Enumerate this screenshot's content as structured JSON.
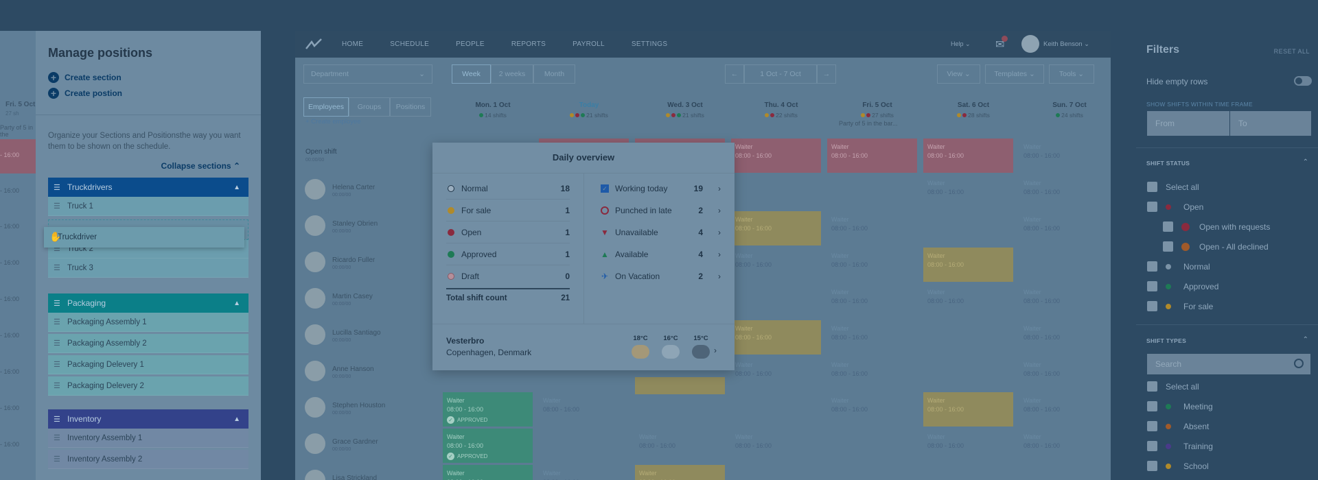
{
  "left_strip": {
    "day": "Fri. 5 Oct",
    "shifts": "27 sh",
    "note": "Party of 5 in the",
    "rows": [
      "- 16:00",
      "- 16:00",
      "- 16:00",
      "- 16:00",
      "- 16:00",
      "- 16:00",
      "- 16:00",
      "- 16:00",
      "- 16:00"
    ]
  },
  "manage": {
    "title": "Manage positions",
    "create_section": "Create section",
    "create_position": "Create postion",
    "description": "Organize your Sections and Positionsthe way you want them to be shown on the schedule.",
    "collapse": "Collapse sections",
    "dragging_item": "Truckdriver",
    "sections": [
      {
        "name": "Truckdrivers",
        "color": "#0b4c8c",
        "items": [
          "Truck 1",
          "Truck 2",
          "Truck 3"
        ]
      },
      {
        "name": "Packaging",
        "color": "#0b7f88",
        "items": [
          "Packaging Assembly 1",
          "Packaging Assembly 2",
          "Packaging Delevery 1",
          "Packaging Delevery 2"
        ]
      },
      {
        "name": "Inventory",
        "color": "#33428a",
        "items": [
          "Inventory Assembly 1",
          "Inventory Assembly 2"
        ]
      }
    ]
  },
  "nav": {
    "items": [
      "HOME",
      "SCHEDULE",
      "PEOPLE",
      "REPORTS",
      "PAYROLL",
      "SETTINGS"
    ],
    "help": "Help",
    "user": "Keith Benson"
  },
  "toolbar": {
    "department": "Department",
    "ranges": [
      "Week",
      "2 weeks",
      "Month"
    ],
    "date_range": "1 Oct - 7 Oct",
    "view": "View",
    "templates": "Templates",
    "tools": "Tools"
  },
  "subbar": {
    "tabs": [
      "Employees",
      "Groups",
      "Positions"
    ],
    "create_employee": "+ Create employee",
    "days": [
      {
        "label": "Mon. 1 Oct",
        "shifts": "14 shifts"
      },
      {
        "label": "Today",
        "shifts": "21 shifts"
      },
      {
        "label": "Wed. 3 Oct",
        "shifts": "21 shifts"
      },
      {
        "label": "Thu. 4 Oct",
        "shifts": "22 shifts"
      },
      {
        "label": "Fri. 5 Oct",
        "shifts": "27 shifts"
      },
      {
        "label": "Sat. 6 Oct",
        "shifts": "28 shifts"
      },
      {
        "label": "Sun. 7 Oct",
        "shifts": "24 shifts"
      }
    ],
    "party_note": "Party of 5 in the bar..."
  },
  "rows": {
    "open_shift": "Open shift",
    "open_shift_sub": "00:00/00",
    "employees": [
      {
        "name": "Helena Carter",
        "sub": "00:00/00"
      },
      {
        "name": "Stanley Obrien",
        "sub": "00:00/00"
      },
      {
        "name": "Ricardo Fuller",
        "sub": "00:00/00"
      },
      {
        "name": "Martin Casey",
        "sub": "00:00/00"
      },
      {
        "name": "Lucilla Santiago",
        "sub": "00:00/00"
      },
      {
        "name": "Anne Hanson",
        "sub": "00:00/00"
      },
      {
        "name": "Stephen Houston",
        "sub": "00:00/00"
      },
      {
        "name": "Grace Gardner",
        "sub": "00:00/00"
      },
      {
        "name": "Lisa Strickland",
        "sub": "00:00/00"
      }
    ]
  },
  "shift": {
    "role": "Waiter",
    "time": "08:00 - 16:00",
    "approved": "APPROVED"
  },
  "overview": {
    "title": "Daily overview",
    "left": [
      {
        "label": "Normal",
        "value": "18",
        "color": "#9aaebf"
      },
      {
        "label": "For sale",
        "value": "1",
        "color": "#b08a2a"
      },
      {
        "label": "Open",
        "value": "1",
        "color": "#8a2a3e"
      },
      {
        "label": "Approved",
        "value": "1",
        "color": "#1e7a55"
      },
      {
        "label": "Draft",
        "value": "0",
        "color": "#b58f9a"
      }
    ],
    "total_label": "Total shift count",
    "total_value": "21",
    "right": [
      {
        "label": "Working today",
        "value": "19",
        "icon": "calendar-check-icon"
      },
      {
        "label": "Punched in late",
        "value": "2",
        "icon": "clock-icon"
      },
      {
        "label": "Unavailable",
        "value": "4",
        "icon": "thumbs-down-icon"
      },
      {
        "label": "Available",
        "value": "4",
        "icon": "thumbs-up-icon"
      },
      {
        "label": "On Vacation",
        "value": "2",
        "icon": "airplane-icon"
      }
    ],
    "location_name": "Vesterbro",
    "location_city": "Copenhagen, Denmark",
    "weather": [
      "18°C",
      "16°C",
      "15°C"
    ]
  },
  "filters": {
    "title": "Filters",
    "reset": "RESET ALL",
    "hide_empty": "Hide empty rows",
    "timeframe_label": "SHOW SHIFTS WITHIN TIME FRAME",
    "from": "From",
    "to": "To",
    "status_title": "SHIFT STATUS",
    "status": [
      "Select all",
      "Open",
      "Open with requests",
      "Open - All declined",
      "Normal",
      "Approved",
      "For sale"
    ],
    "types_title": "SHIFT TYPES",
    "search": "Search",
    "types": [
      "Select all",
      "Meeting",
      "Absent",
      "Training",
      "School"
    ]
  }
}
